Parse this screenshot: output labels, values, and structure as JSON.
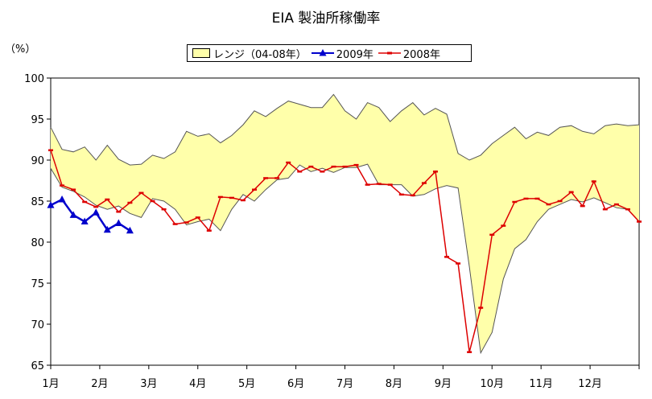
{
  "chart_data": {
    "type": "line",
    "title": "EIA 製油所稼働率",
    "y_unit": "（%）",
    "ylim": [
      65,
      100
    ],
    "y_ticks": [
      "100",
      "95",
      "90",
      "85",
      "80",
      "75",
      "70",
      "65"
    ],
    "x_tick_labels": [
      "1月",
      "2月",
      "3月",
      "4月",
      "5月",
      "6月",
      "7月",
      "8月",
      "9月",
      "10月",
      "11月",
      "12月"
    ],
    "x_range_weeks": [
      1,
      53
    ],
    "grid": false,
    "legend_position": "top",
    "series": [
      {
        "name": "レンジ（04-08年）",
        "kind": "band",
        "color": "#ffffaa",
        "weeks": [
          1,
          2,
          3,
          4,
          5,
          6,
          7,
          8,
          9,
          10,
          11,
          12,
          13,
          14,
          15,
          16,
          17,
          18,
          19,
          20,
          21,
          22,
          23,
          24,
          25,
          26,
          27,
          28,
          29,
          30,
          31,
          32,
          33,
          34,
          35,
          36,
          37,
          38,
          39,
          40,
          41,
          42,
          43,
          44,
          45,
          46,
          47,
          48,
          49,
          50,
          51,
          52,
          53
        ],
        "upper": [
          94.0,
          91.3,
          91.0,
          91.6,
          90.0,
          91.8,
          90.1,
          89.4,
          89.5,
          90.6,
          90.2,
          91.0,
          93.5,
          92.9,
          93.2,
          92.1,
          93.0,
          94.3,
          96.0,
          95.3,
          96.3,
          97.2,
          96.8,
          96.4,
          96.4,
          98.0,
          96.0,
          95.0,
          97.0,
          96.4,
          94.7,
          96.0,
          97.0,
          95.5,
          96.3,
          95.6,
          90.8,
          90.0,
          90.6,
          92.0,
          93.0,
          94.0,
          92.6,
          93.4,
          93.0,
          94.0,
          94.2,
          93.5,
          93.2,
          94.2,
          94.4,
          94.2,
          94.3
        ],
        "lower": [
          89.0,
          86.7,
          86.2,
          85.5,
          84.5,
          84.0,
          84.4,
          83.5,
          83.0,
          85.3,
          85.0,
          84.0,
          82.1,
          82.5,
          82.8,
          81.4,
          84.0,
          85.8,
          85.0,
          86.4,
          87.6,
          87.8,
          89.4,
          88.6,
          89.0,
          88.5,
          89.1,
          89.1,
          89.5,
          87.0,
          87.0,
          87.0,
          85.6,
          85.8,
          86.5,
          86.9,
          86.6,
          77.0,
          66.5,
          69.0,
          75.5,
          79.2,
          80.3,
          82.5,
          84.0,
          84.6,
          85.2,
          84.9,
          85.4,
          84.8,
          84.2,
          84.0,
          82.5
        ]
      },
      {
        "name": "2009年",
        "kind": "line",
        "color": "#0000cc",
        "marker": "triangle",
        "weeks": [
          1,
          2,
          3,
          4,
          5,
          6,
          7,
          8,
          9,
          10
        ],
        "values": [
          84.5,
          85.2,
          83.3,
          82.5,
          83.6,
          81.5,
          82.3,
          81.4,
          null,
          null
        ]
      },
      {
        "name": "2008年",
        "kind": "line",
        "color": "#dd0000",
        "marker": "dash",
        "weeks": [
          1,
          2,
          3,
          4,
          5,
          6,
          7,
          8,
          9,
          10,
          11,
          12,
          13,
          14,
          15,
          16,
          17,
          18,
          19,
          20,
          21,
          22,
          23,
          24,
          25,
          26,
          27,
          28,
          29,
          30,
          31,
          32,
          33,
          34,
          35,
          36,
          37,
          38,
          39,
          40,
          41,
          42,
          43,
          44,
          45,
          46,
          47,
          48,
          49,
          50,
          51,
          52,
          53
        ],
        "values": [
          91.2,
          86.9,
          86.4,
          84.9,
          84.3,
          85.2,
          83.7,
          84.8,
          86.0,
          85.0,
          84.0,
          82.2,
          82.4,
          83.0,
          81.4,
          85.5,
          85.4,
          85.1,
          86.4,
          87.8,
          87.8,
          89.7,
          88.6,
          89.2,
          88.6,
          89.2,
          89.2,
          89.4,
          87.0,
          87.1,
          87.0,
          85.8,
          85.7,
          87.2,
          88.6,
          78.2,
          77.4,
          66.6,
          72.0,
          80.9,
          82.0,
          84.9,
          85.3,
          85.3,
          84.6,
          85.0,
          86.1,
          84.4,
          87.4,
          84.0,
          84.6,
          84.0,
          82.5
        ]
      }
    ]
  }
}
